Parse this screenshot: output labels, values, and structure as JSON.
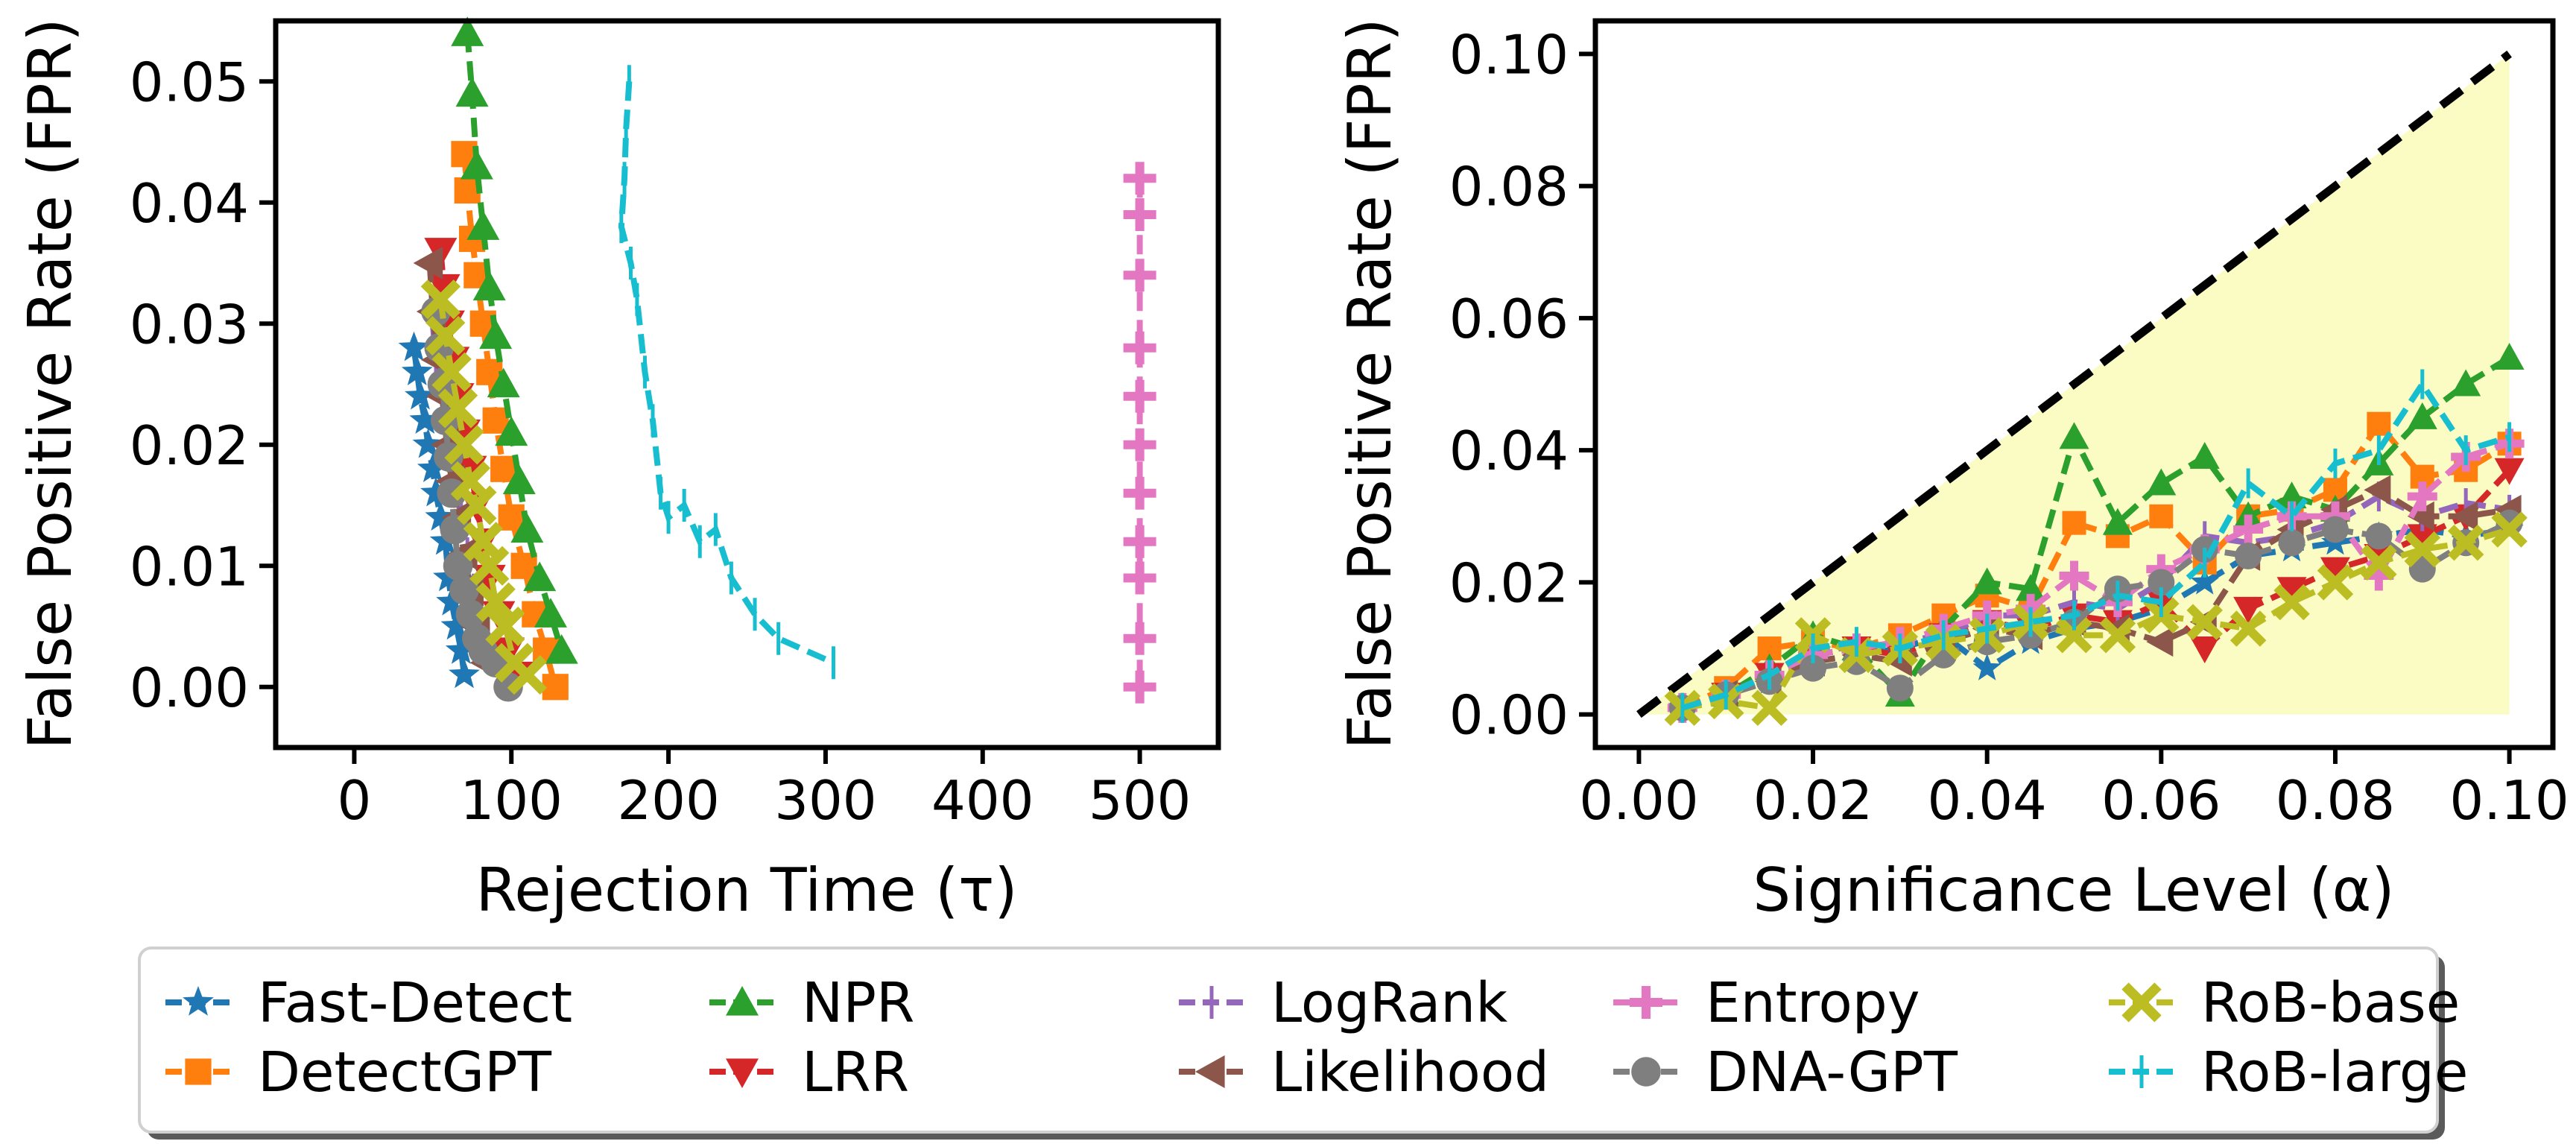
{
  "chart_data": [
    {
      "type": "line",
      "xlabel": "Rejection Time (τ)",
      "ylabel": "False Positive Rate (FPR)",
      "xlim": [
        -50,
        550
      ],
      "ylim": [
        -0.005,
        0.055
      ],
      "xticks": [
        "0",
        "100",
        "200",
        "300",
        "400",
        "500"
      ],
      "yticks": [
        "0.00",
        "0.01",
        "0.02",
        "0.03",
        "0.04",
        "0.05"
      ],
      "series": [
        {
          "name": "Fast-Detect",
          "x": [
            38,
            40,
            42,
            45,
            47,
            50,
            52,
            55,
            58,
            60,
            62,
            65,
            68,
            70
          ],
          "y": [
            0.028,
            0.026,
            0.024,
            0.022,
            0.02,
            0.018,
            0.016,
            0.014,
            0.012,
            0.009,
            0.007,
            0.005,
            0.003,
            0.001
          ]
        },
        {
          "name": "DetectGPT",
          "x": [
            70,
            72,
            75,
            78,
            82,
            86,
            90,
            95,
            100,
            108,
            115,
            122,
            128
          ],
          "y": [
            0.044,
            0.041,
            0.037,
            0.034,
            0.03,
            0.026,
            0.022,
            0.018,
            0.014,
            0.01,
            0.006,
            0.003,
            0.0
          ]
        },
        {
          "name": "NPR",
          "x": [
            72,
            75,
            78,
            82,
            86,
            90,
            95,
            100,
            105,
            110,
            118,
            125,
            132
          ],
          "y": [
            0.054,
            0.049,
            0.043,
            0.038,
            0.033,
            0.029,
            0.025,
            0.021,
            0.017,
            0.013,
            0.009,
            0.006,
            0.003
          ]
        },
        {
          "name": "LRR",
          "x": [
            55,
            57,
            60,
            63,
            66,
            70,
            74,
            78,
            82,
            86,
            92,
            98,
            105
          ],
          "y": [
            0.036,
            0.033,
            0.03,
            0.027,
            0.024,
            0.021,
            0.018,
            0.015,
            0.012,
            0.009,
            0.006,
            0.003,
            0.001
          ]
        },
        {
          "name": "LogRank",
          "x": [
            50,
            52,
            55,
            58,
            61,
            64,
            68,
            72,
            76,
            80,
            85,
            92
          ],
          "y": [
            0.03,
            0.027,
            0.025,
            0.022,
            0.019,
            0.017,
            0.014,
            0.011,
            0.008,
            0.006,
            0.003,
            0.001
          ]
        },
        {
          "name": "Likelihood",
          "x": [
            48,
            50,
            53,
            56,
            59,
            62,
            66,
            70,
            74,
            78,
            84
          ],
          "y": [
            0.035,
            0.031,
            0.027,
            0.024,
            0.02,
            0.017,
            0.014,
            0.011,
            0.008,
            0.005,
            0.002
          ]
        },
        {
          "name": "Entropy",
          "x": [
            500,
            500,
            500,
            500,
            500,
            500,
            500,
            500,
            500,
            500,
            500
          ],
          "y": [
            0.042,
            0.039,
            0.034,
            0.028,
            0.024,
            0.02,
            0.016,
            0.012,
            0.009,
            0.004,
            0.0
          ]
        },
        {
          "name": "DNA-GPT",
          "x": [
            52,
            54,
            56,
            58,
            60,
            62,
            64,
            66,
            70,
            74,
            78,
            82,
            90,
            98
          ],
          "y": [
            0.031,
            0.028,
            0.025,
            0.022,
            0.019,
            0.016,
            0.013,
            0.01,
            0.008,
            0.006,
            0.004,
            0.003,
            0.002,
            0.0
          ]
        },
        {
          "name": "RoB-base",
          "x": [
            55,
            58,
            62,
            66,
            70,
            74,
            78,
            82,
            86,
            90,
            96,
            102,
            110
          ],
          "y": [
            0.032,
            0.029,
            0.026,
            0.023,
            0.02,
            0.017,
            0.015,
            0.012,
            0.01,
            0.007,
            0.005,
            0.002,
            0.001
          ]
        },
        {
          "name": "RoB-large",
          "x": [
            175,
            173,
            172,
            170,
            176,
            180,
            185,
            190,
            195,
            200,
            210,
            220,
            230,
            240,
            255,
            270,
            305
          ],
          "y": [
            0.05,
            0.046,
            0.042,
            0.038,
            0.035,
            0.032,
            0.026,
            0.022,
            0.016,
            0.014,
            0.015,
            0.012,
            0.013,
            0.009,
            0.006,
            0.004,
            0.002
          ]
        }
      ]
    },
    {
      "type": "line",
      "xlabel": "Significance Level (α)",
      "ylabel": "False Positive Rate (FPR)",
      "xlim": [
        -0.005,
        0.105
      ],
      "ylim": [
        -0.005,
        0.105
      ],
      "xticks": [
        "0.00",
        "0.02",
        "0.04",
        "0.06",
        "0.08",
        "0.10"
      ],
      "yticks": [
        "0.00",
        "0.02",
        "0.04",
        "0.06",
        "0.08",
        "0.10"
      ],
      "alpha": [
        0.005,
        0.01,
        0.015,
        0.02,
        0.025,
        0.03,
        0.035,
        0.04,
        0.045,
        0.05,
        0.055,
        0.06,
        0.065,
        0.07,
        0.075,
        0.08,
        0.085,
        0.09,
        0.095,
        0.1
      ],
      "series": [
        {
          "name": "Fast-Detect",
          "y": [
            0.001,
            0.003,
            0.005,
            0.008,
            0.009,
            0.01,
            0.012,
            0.007,
            0.011,
            0.013,
            0.014,
            0.016,
            0.02,
            0.024,
            0.025,
            0.026,
            0.027,
            0.028,
            0.027,
            0.028
          ]
        },
        {
          "name": "DetectGPT",
          "y": [
            0.001,
            0.004,
            0.01,
            0.011,
            0.01,
            0.012,
            0.015,
            0.018,
            0.016,
            0.029,
            0.027,
            0.03,
            0.023,
            0.03,
            0.031,
            0.034,
            0.044,
            0.036,
            0.037,
            0.041
          ]
        },
        {
          "name": "NPR",
          "y": [
            0.001,
            0.003,
            0.007,
            0.012,
            0.01,
            0.003,
            0.013,
            0.02,
            0.019,
            0.042,
            0.029,
            0.035,
            0.039,
            0.03,
            0.033,
            0.031,
            0.038,
            0.045,
            0.05,
            0.054
          ]
        },
        {
          "name": "LRR",
          "y": [
            0.001,
            0.003,
            0.006,
            0.009,
            0.01,
            0.009,
            0.012,
            0.014,
            0.013,
            0.015,
            0.014,
            0.017,
            0.01,
            0.016,
            0.019,
            0.022,
            0.024,
            0.027,
            0.03,
            0.037
          ]
        },
        {
          "name": "LogRank",
          "y": [
            0.001,
            0.003,
            0.006,
            0.01,
            0.01,
            0.011,
            0.012,
            0.015,
            0.015,
            0.017,
            0.016,
            0.02,
            0.027,
            0.026,
            0.027,
            0.029,
            0.033,
            0.03,
            0.032,
            0.031
          ]
        },
        {
          "name": "Likelihood",
          "y": [
            0.001,
            0.003,
            0.005,
            0.008,
            0.009,
            0.008,
            0.011,
            0.013,
            0.012,
            0.014,
            0.013,
            0.011,
            0.014,
            0.024,
            0.028,
            0.031,
            0.034,
            0.03,
            0.03,
            0.031
          ]
        },
        {
          "name": "Entropy",
          "y": [
            0.001,
            0.003,
            0.006,
            0.009,
            0.01,
            0.011,
            0.013,
            0.015,
            0.016,
            0.021,
            0.017,
            0.022,
            0.025,
            0.028,
            0.03,
            0.03,
            0.021,
            0.033,
            0.039,
            0.041
          ]
        },
        {
          "name": "DNA-GPT",
          "y": [
            0.001,
            0.003,
            0.005,
            0.007,
            0.008,
            0.004,
            0.009,
            0.011,
            0.012,
            0.014,
            0.019,
            0.02,
            0.025,
            0.024,
            0.026,
            0.028,
            0.027,
            0.022,
            0.026,
            0.029
          ]
        },
        {
          "name": "RoB-base",
          "y": [
            0.001,
            0.002,
            0.001,
            0.012,
            0.009,
            0.01,
            0.011,
            0.012,
            0.014,
            0.012,
            0.012,
            0.015,
            0.014,
            0.013,
            0.017,
            0.02,
            0.023,
            0.025,
            0.026,
            0.028
          ]
        },
        {
          "name": "RoB-large",
          "y": [
            0.001,
            0.003,
            0.006,
            0.01,
            0.011,
            0.01,
            0.012,
            0.013,
            0.014,
            0.015,
            0.018,
            0.017,
            0.023,
            0.035,
            0.03,
            0.038,
            0.04,
            0.05,
            0.04,
            0.042
          ]
        }
      ]
    }
  ],
  "legend": {
    "placement": "bottom",
    "entries": [
      {
        "name": "Fast-Detect",
        "color": "#1f77b4",
        "marker": "star"
      },
      {
        "name": "DetectGPT",
        "color": "#ff7f0e",
        "marker": "square"
      },
      {
        "name": "NPR",
        "color": "#2ca02c",
        "marker": "triangle-up"
      },
      {
        "name": "LRR",
        "color": "#d62728",
        "marker": "triangle-down"
      },
      {
        "name": "LogRank",
        "color": "#9467bd",
        "marker": "vline"
      },
      {
        "name": "Likelihood",
        "color": "#8c564b",
        "marker": "triangle-left"
      },
      {
        "name": "Entropy",
        "color": "#e377c2",
        "marker": "plus"
      },
      {
        "name": "DNA-GPT",
        "color": "#7f7f7f",
        "marker": "circle"
      },
      {
        "name": "RoB-base",
        "color": "#bcbd22",
        "marker": "x"
      },
      {
        "name": "RoB-large",
        "color": "#17becf",
        "marker": "vline"
      }
    ]
  }
}
